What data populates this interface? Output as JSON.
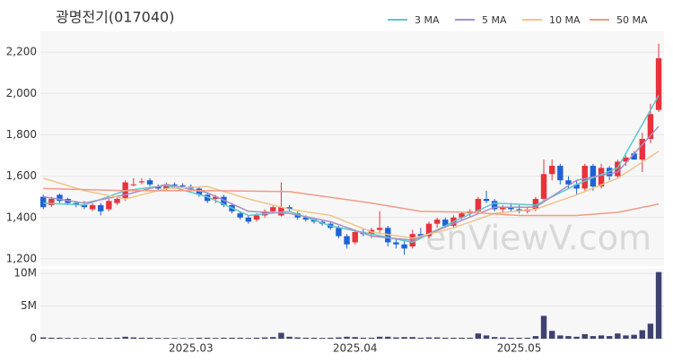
{
  "chart_data": [
    {
      "type": "candlestick",
      "title": "광명전기(017040)",
      "up_color": "#e8323c",
      "down_color": "#1e62d6",
      "open": [
        1500,
        1460,
        1510,
        1490,
        1470,
        1460,
        1440,
        1460,
        1440,
        1470,
        1490,
        1560,
        1570,
        1580,
        1550,
        1540,
        1560,
        1555,
        1550,
        1540,
        1510,
        1490,
        1500,
        1460,
        1420,
        1400,
        1390,
        1410,
        1430,
        1410,
        1450,
        1420,
        1400,
        1390,
        1380,
        1370,
        1350,
        1310,
        1280,
        1330,
        1320,
        1340,
        1350,
        1280,
        1270,
        1260,
        1320,
        1310,
        1370,
        1390,
        1360,
        1400,
        1420,
        1430,
        1490,
        1480,
        1440,
        1450,
        1440,
        1430,
        1440,
        1490,
        1610,
        1650,
        1580,
        1560,
        1540,
        1650,
        1550,
        1640,
        1600,
        1670,
        1710,
        1680,
        1780,
        1920
      ],
      "high": [
        1510,
        1500,
        1515,
        1495,
        1480,
        1480,
        1470,
        1470,
        1490,
        1500,
        1580,
        1590,
        1590,
        1590,
        1560,
        1570,
        1570,
        1565,
        1560,
        1550,
        1520,
        1510,
        1510,
        1470,
        1430,
        1410,
        1420,
        1440,
        1460,
        1570,
        1460,
        1430,
        1410,
        1400,
        1390,
        1380,
        1360,
        1320,
        1340,
        1350,
        1350,
        1430,
        1360,
        1300,
        1290,
        1340,
        1350,
        1380,
        1400,
        1400,
        1410,
        1430,
        1440,
        1500,
        1530,
        1490,
        1460,
        1470,
        1460,
        1450,
        1500,
        1680,
        1680,
        1660,
        1600,
        1580,
        1660,
        1660,
        1660,
        1650,
        1680,
        1700,
        1720,
        1810,
        1950,
        2240
      ],
      "low": [
        1440,
        1450,
        1470,
        1460,
        1450,
        1440,
        1430,
        1410,
        1430,
        1460,
        1480,
        1550,
        1560,
        1550,
        1530,
        1530,
        1545,
        1545,
        1530,
        1500,
        1470,
        1470,
        1450,
        1420,
        1390,
        1370,
        1380,
        1400,
        1420,
        1405,
        1430,
        1390,
        1380,
        1370,
        1360,
        1340,
        1300,
        1250,
        1270,
        1310,
        1300,
        1320,
        1260,
        1250,
        1220,
        1250,
        1300,
        1300,
        1350,
        1350,
        1350,
        1390,
        1400,
        1420,
        1470,
        1430,
        1420,
        1430,
        1420,
        1420,
        1430,
        1480,
        1580,
        1560,
        1540,
        1510,
        1530,
        1530,
        1540,
        1580,
        1590,
        1650,
        1680,
        1620,
        1760,
        1910
      ],
      "close": [
        1450,
        1490,
        1480,
        1470,
        1460,
        1450,
        1460,
        1430,
        1480,
        1490,
        1570,
        1560,
        1575,
        1560,
        1540,
        1560,
        1555,
        1550,
        1540,
        1510,
        1480,
        1500,
        1460,
        1430,
        1400,
        1380,
        1410,
        1430,
        1450,
        1450,
        1440,
        1400,
        1390,
        1380,
        1370,
        1350,
        1310,
        1270,
        1330,
        1320,
        1340,
        1350,
        1280,
        1270,
        1250,
        1320,
        1310,
        1370,
        1390,
        1360,
        1400,
        1420,
        1430,
        1490,
        1480,
        1440,
        1450,
        1440,
        1430,
        1440,
        1490,
        1610,
        1650,
        1580,
        1560,
        1540,
        1650,
        1550,
        1640,
        1600,
        1670,
        1690,
        1680,
        1780,
        1900,
        2170
      ],
      "series": [
        {
          "name": "3 MA",
          "color": "#5cc8c8",
          "x": [
            0,
            5,
            10,
            15,
            20,
            25,
            30,
            35,
            40,
            45,
            50,
            55,
            60,
            65,
            70,
            75
          ],
          "values": [
            1470,
            1460,
            1530,
            1555,
            1500,
            1410,
            1430,
            1360,
            1320,
            1280,
            1380,
            1470,
            1460,
            1560,
            1640,
            1990
          ]
        },
        {
          "name": "5 MA",
          "color": "#a98fc7",
          "x": [
            0,
            5,
            10,
            15,
            20,
            25,
            30,
            35,
            40,
            45,
            50,
            55,
            60,
            65,
            70,
            75
          ],
          "values": [
            1500,
            1470,
            1510,
            1560,
            1520,
            1430,
            1420,
            1380,
            1310,
            1290,
            1370,
            1450,
            1450,
            1580,
            1620,
            1840
          ]
        },
        {
          "name": "10 MA",
          "color": "#f0c48a",
          "x": [
            0,
            5,
            10,
            15,
            20,
            25,
            30,
            35,
            40,
            45,
            50,
            55,
            60,
            65,
            70,
            75
          ],
          "values": [
            1590,
            1530,
            1490,
            1540,
            1550,
            1490,
            1440,
            1410,
            1330,
            1300,
            1350,
            1420,
            1440,
            1510,
            1590,
            1720
          ]
        },
        {
          "name": "50 MA",
          "color": "#f29a86",
          "x": [
            0,
            10,
            20,
            30,
            40,
            46,
            52,
            58,
            65,
            70,
            75
          ],
          "values": [
            1540,
            1530,
            1530,
            1525,
            1470,
            1430,
            1425,
            1410,
            1410,
            1425,
            1465
          ]
        }
      ],
      "ylim": [
        1165,
        2300
      ],
      "yticks": [
        {
          "value": 1200,
          "label": "1,200"
        },
        {
          "value": 1400,
          "label": "1,400"
        },
        {
          "value": 1600,
          "label": "1,600"
        },
        {
          "value": 1800,
          "label": "1,800"
        },
        {
          "value": 2000,
          "label": "2,000"
        },
        {
          "value": 2200,
          "label": "2,200"
        }
      ],
      "watermark": "enViewV.com"
    },
    {
      "type": "bar",
      "color": "#3d4270",
      "categories": [
        null,
        null,
        null,
        null,
        null,
        null,
        null,
        null,
        null,
        null,
        null,
        null,
        null,
        null,
        null,
        null,
        null,
        null,
        "2025.03",
        null,
        null,
        null,
        null,
        null,
        null,
        null,
        null,
        null,
        null,
        null,
        null,
        null,
        null,
        null,
        null,
        null,
        null,
        null,
        "2025.04",
        null,
        null,
        null,
        null,
        null,
        null,
        null,
        null,
        null,
        null,
        null,
        null,
        null,
        null,
        null,
        null,
        null,
        null,
        null,
        "2025.05",
        null,
        null,
        null,
        null,
        null,
        null,
        null,
        null,
        null,
        null,
        null,
        null,
        null,
        null,
        null,
        null,
        null
      ],
      "values": [
        200000,
        150000,
        150000,
        120000,
        120000,
        100000,
        100000,
        150000,
        120000,
        150000,
        300000,
        200000,
        150000,
        150000,
        120000,
        120000,
        100000,
        100000,
        100000,
        150000,
        150000,
        120000,
        150000,
        150000,
        150000,
        120000,
        150000,
        200000,
        250000,
        900000,
        300000,
        200000,
        150000,
        150000,
        120000,
        150000,
        200000,
        300000,
        250000,
        150000,
        150000,
        300000,
        300000,
        200000,
        250000,
        250000,
        150000,
        200000,
        200000,
        150000,
        150000,
        150000,
        150000,
        800000,
        500000,
        250000,
        200000,
        150000,
        150000,
        150000,
        400000,
        3500000,
        1200000,
        500000,
        400000,
        300000,
        700000,
        400000,
        500000,
        400000,
        800000,
        500000,
        600000,
        1300000,
        2300000,
        10200000
      ],
      "ylim": [
        0,
        10700000
      ],
      "yticks": [
        0,
        {
          "value": 5000000,
          "label": "5M"
        },
        {
          "value": 10000000,
          "label": "10M"
        }
      ]
    }
  ]
}
